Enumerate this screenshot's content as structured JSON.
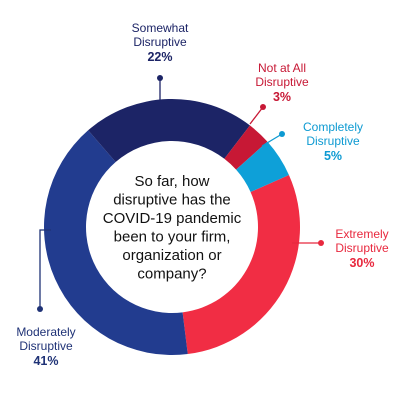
{
  "chart_data": {
    "type": "pie",
    "donut": true,
    "center_text": [
      "So far, how",
      "disruptive has the",
      "COVID-19 pandemic",
      "been to your firm,",
      "organization or",
      "company?"
    ],
    "slices": [
      {
        "label": [
          "Extremely",
          "Disruptive"
        ],
        "value": 30,
        "pct_label": "30%",
        "color": "#f12d44",
        "label_color": "#e8283e"
      },
      {
        "label": [
          "Moderately",
          "Disruptive"
        ],
        "value": 41,
        "pct_label": "41%",
        "color": "#223c8f",
        "label_color": "#1f3276"
      },
      {
        "label": [
          "Somewhat",
          "Disruptive"
        ],
        "value": 22,
        "pct_label": "22%",
        "color": "#1c2466",
        "label_color": "#1c2466"
      },
      {
        "label": [
          "Not at All",
          "Disruptive"
        ],
        "value": 3,
        "pct_label": "3%",
        "color": "#c71835",
        "label_color": "#c71835"
      },
      {
        "label": [
          "Completely",
          "Disruptive"
        ],
        "value": 5,
        "pct_label": "5%",
        "color": "#0ea0d8",
        "label_color": "#0d9ad2"
      }
    ]
  }
}
